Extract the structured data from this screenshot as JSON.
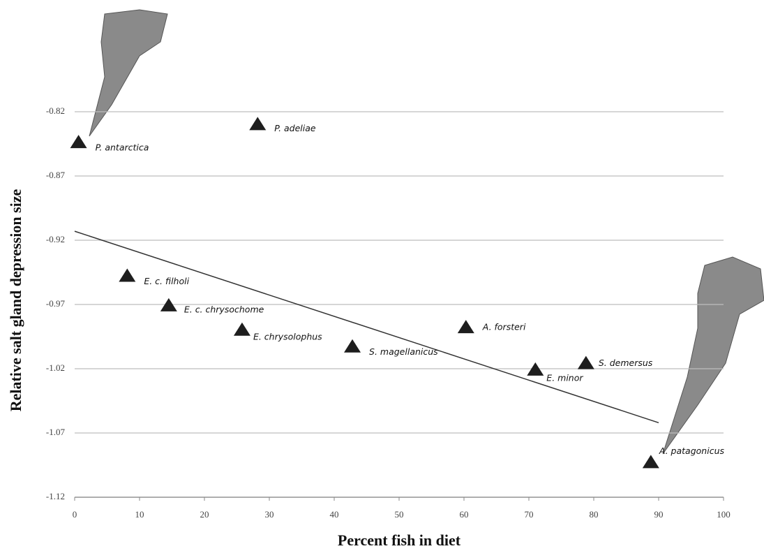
{
  "chart_data": {
    "type": "scatter",
    "x_label": "Percent fish in diet",
    "y_label": "Relative salt gland depression size",
    "x": [
      0.6,
      28.2,
      8.1,
      14.5,
      25.8,
      42.8,
      60.3,
      71.0,
      78.8,
      88.8
    ],
    "values": [
      -0.844,
      -0.83,
      -0.948,
      -0.971,
      -0.99,
      -1.003,
      -0.988,
      -1.021,
      -1.016,
      -1.093
    ],
    "point_labels": [
      "P. antarctica",
      "P. adeliae",
      "E. c. filholi",
      "E. c. chrysochome",
      "E. chrysolophus",
      "S. magellanicus",
      "A. forsteri",
      "E. minor",
      "S. demersus",
      "A. patagonicus"
    ],
    "color": "#1e1e1e",
    "trendline": {
      "x": [
        0,
        90
      ],
      "values": [
        -0.913,
        -1.062
      ],
      "color": "#333333"
    },
    "xlim": [
      0,
      100
    ],
    "xticks": [
      0,
      10,
      20,
      30,
      40,
      50,
      60,
      70,
      80,
      90,
      100
    ],
    "ylim": [
      -1.12,
      -0.82
    ],
    "yticks": [
      -0.82,
      -0.87,
      -0.92,
      -0.97,
      -1.02,
      -1.07,
      -1.12
    ],
    "grid": true
  }
}
